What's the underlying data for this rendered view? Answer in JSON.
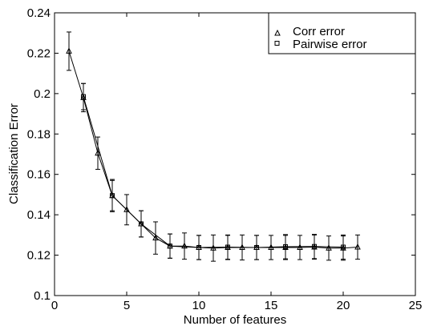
{
  "chart_data": {
    "type": "line",
    "title": "",
    "xlabel": "Number of features",
    "ylabel": "Classification Error",
    "xlim": [
      0,
      25
    ],
    "ylim": [
      0.1,
      0.24
    ],
    "x_ticks": [
      0,
      5,
      10,
      15,
      20,
      25
    ],
    "y_ticks": [
      0.1,
      0.12,
      0.14,
      0.16,
      0.18,
      0.2,
      0.22,
      0.24
    ],
    "x_tick_labels": [
      "0",
      "5",
      "10",
      "15",
      "20",
      "25"
    ],
    "y_tick_labels": [
      "0.1",
      "0.12",
      "0.14",
      "0.16",
      "0.18",
      "0.2",
      "0.22",
      "0.24"
    ],
    "grid": false,
    "legend_position": "top-right",
    "series": [
      {
        "name": "Corr error",
        "marker": "triangle",
        "color": "#000000",
        "x": [
          1,
          2,
          3,
          4,
          5,
          6,
          7,
          8,
          9,
          10,
          11,
          12,
          13,
          14,
          15,
          16,
          17,
          18,
          19,
          20,
          21
        ],
        "y": [
          0.221,
          0.198,
          0.1705,
          0.1495,
          0.1425,
          0.1355,
          0.1285,
          0.1245,
          0.1245,
          0.1238,
          0.1235,
          0.1238,
          0.1238,
          0.1238,
          0.1238,
          0.1238,
          0.1238,
          0.124,
          0.1235,
          0.1235,
          0.124
        ],
        "err": [
          0.0095,
          0.007,
          0.008,
          0.008,
          0.0075,
          0.0065,
          0.008,
          0.006,
          0.0065,
          0.006,
          0.0065,
          0.006,
          0.0062,
          0.006,
          0.006,
          0.006,
          0.006,
          0.006,
          0.006,
          0.006,
          0.006
        ]
      },
      {
        "name": "Pairwise error",
        "marker": "square",
        "color": "#000000",
        "x": [
          2,
          4,
          6,
          8,
          10,
          12,
          14,
          16,
          18,
          20
        ],
        "y": [
          0.1985,
          0.1495,
          0.1355,
          0.1245,
          0.1238,
          0.124,
          0.1238,
          0.1242,
          0.1243,
          0.124
        ],
        "err": [
          0.0065,
          0.0075,
          0.0065,
          0.006,
          0.006,
          0.006,
          0.006,
          0.006,
          0.006,
          0.006
        ]
      }
    ]
  }
}
